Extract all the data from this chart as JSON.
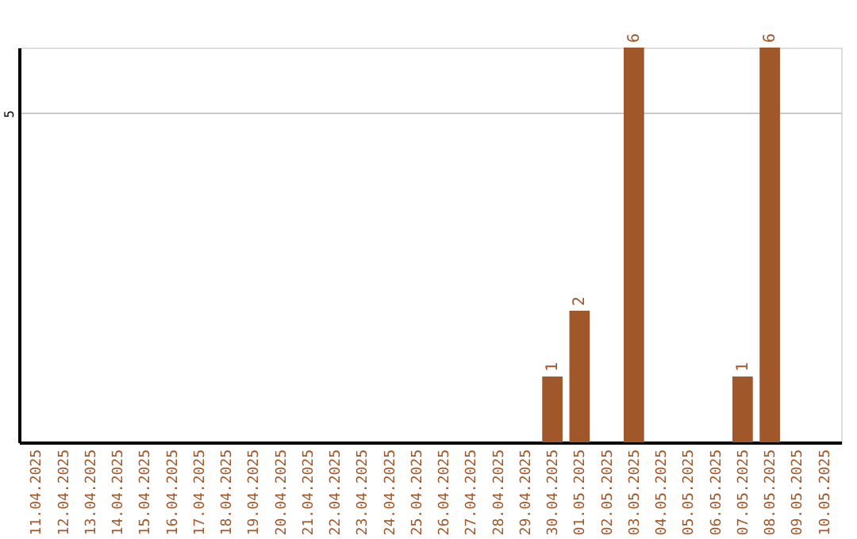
{
  "chart_data": {
    "type": "bar",
    "categories": [
      "11.04.2025",
      "12.04.2025",
      "13.04.2025",
      "14.04.2025",
      "15.04.2025",
      "16.04.2025",
      "17.04.2025",
      "18.04.2025",
      "19.04.2025",
      "20.04.2025",
      "21.04.2025",
      "22.04.2025",
      "23.04.2025",
      "24.04.2025",
      "25.04.2025",
      "26.04.2025",
      "27.04.2025",
      "28.04.2025",
      "29.04.2025",
      "30.04.2025",
      "01.05.2025",
      "02.05.2025",
      "03.05.2025",
      "04.05.2025",
      "05.05.2025",
      "06.05.2025",
      "07.05.2025",
      "08.05.2025",
      "09.05.2025",
      "10.05.2025"
    ],
    "series": [
      {
        "color": "#a0582a",
        "values": [
          null,
          null,
          null,
          null,
          null,
          null,
          null,
          null,
          null,
          null,
          null,
          null,
          null,
          null,
          null,
          null,
          null,
          null,
          null,
          1,
          2,
          null,
          6,
          null,
          null,
          null,
          1,
          6,
          null,
          null
        ]
      }
    ],
    "ylim": [
      0,
      6
    ],
    "yticks": [
      5
    ],
    "grid": "y",
    "data_labels": true
  }
}
